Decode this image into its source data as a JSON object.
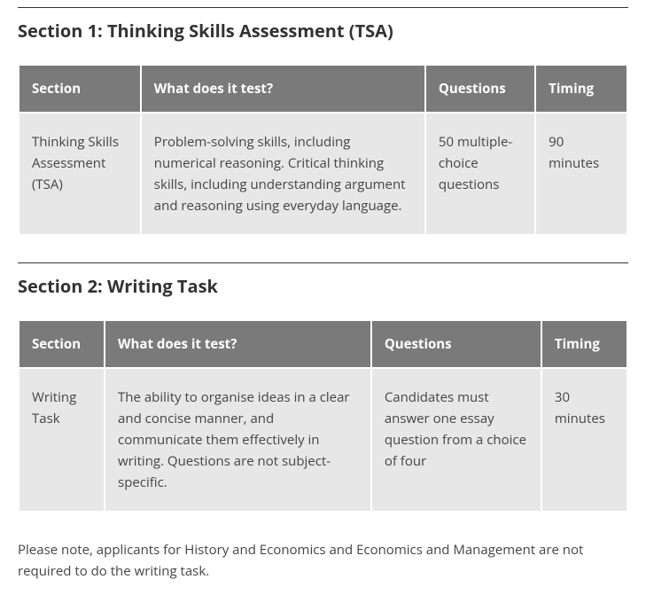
{
  "sections": [
    {
      "title": "Section 1: Thinking Skills Assessment (TSA)",
      "columns": [
        "Section",
        "What does it test?",
        "Questions",
        "Timing"
      ],
      "col_widths": [
        "20%",
        "47%",
        "18%",
        "15%"
      ],
      "rows": [
        {
          "section": "Thinking Skills Assessment (TSA)",
          "what": "Problem-solving skills, including numerical reasoning. Critical thinking skills, including understanding argument and reasoning using everyday language.",
          "questions": "50 multiple-choice questions",
          "timing": "90 minutes"
        }
      ]
    },
    {
      "title": "Section 2: Writing Task",
      "columns": [
        "Section",
        "What does it test?",
        "Questions",
        "Timing"
      ],
      "col_widths": [
        "14%",
        "44%",
        "28%",
        "14%"
      ],
      "rows": [
        {
          "section": "Writing Task",
          "what": "The ability to organise ideas in a clear and concise manner, and communicate them effectively in writing. Questions are not subject-specific.",
          "questions": "Candidates must answer one essay question from a choice of four",
          "timing": "30 minutes"
        }
      ]
    }
  ],
  "footnote": "Please note, applicants for History and Economics and Economics and Management are not required to do the writing task.",
  "styling": {
    "header_bg": "#7a7a7a",
    "header_fg": "#ffffff",
    "cell_bg": "#e7e7e7",
    "cell_fg": "#444444",
    "title_color": "#333333",
    "hr_color": "#333333",
    "cell_fontsize": 15,
    "header_fontsize": 15,
    "title_fontsize": 20
  }
}
